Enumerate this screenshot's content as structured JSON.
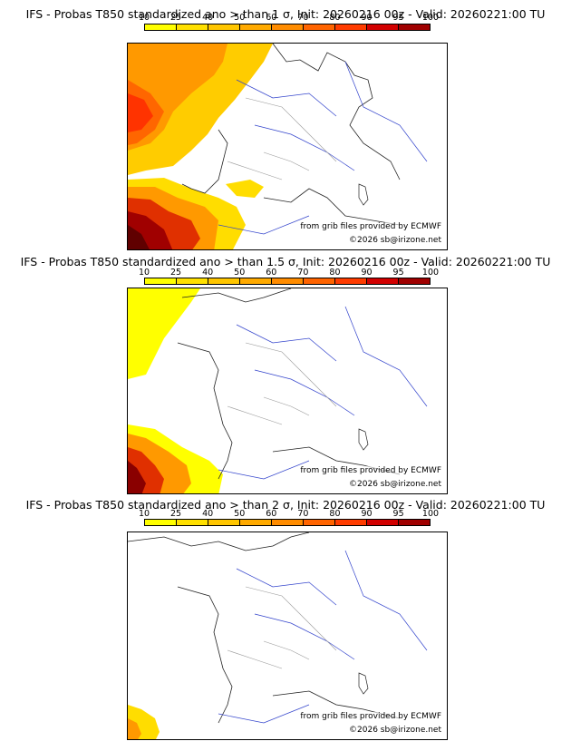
{
  "colorbar": {
    "ticks": [
      "10",
      "25",
      "40",
      "50",
      "60",
      "70",
      "80",
      "90",
      "95",
      "100"
    ],
    "colors": [
      "#ffff00",
      "#ffe000",
      "#ffc600",
      "#ffaa00",
      "#ff8c00",
      "#ff6400",
      "#ff3c00",
      "#d20000",
      "#a00000",
      "#500000"
    ]
  },
  "panels": [
    {
      "title": "IFS - Probas T850  standardized ano > than 1 σ, Init: 20260216 00z - Valid: 20260221:00 TU",
      "credit_source": "from grib files provided by ECMWF",
      "credit_copyright": "©2026 sb@irizone.net"
    },
    {
      "title": "IFS - Probas T850  standardized ano > than 1.5 σ, Init: 20260216 00z - Valid: 20260221:00 TU",
      "credit_source": "from grib files provided by ECMWF",
      "credit_copyright": "©2026 sb@irizone.net"
    },
    {
      "title": "IFS - Probas T850  standardized ano > than 2 σ, Init: 20260216 00z - Valid: 20260221:00 TU",
      "credit_source": "from grib files provided by ECMWF",
      "credit_copyright": "©2026 sb@irizone.net"
    }
  ]
}
